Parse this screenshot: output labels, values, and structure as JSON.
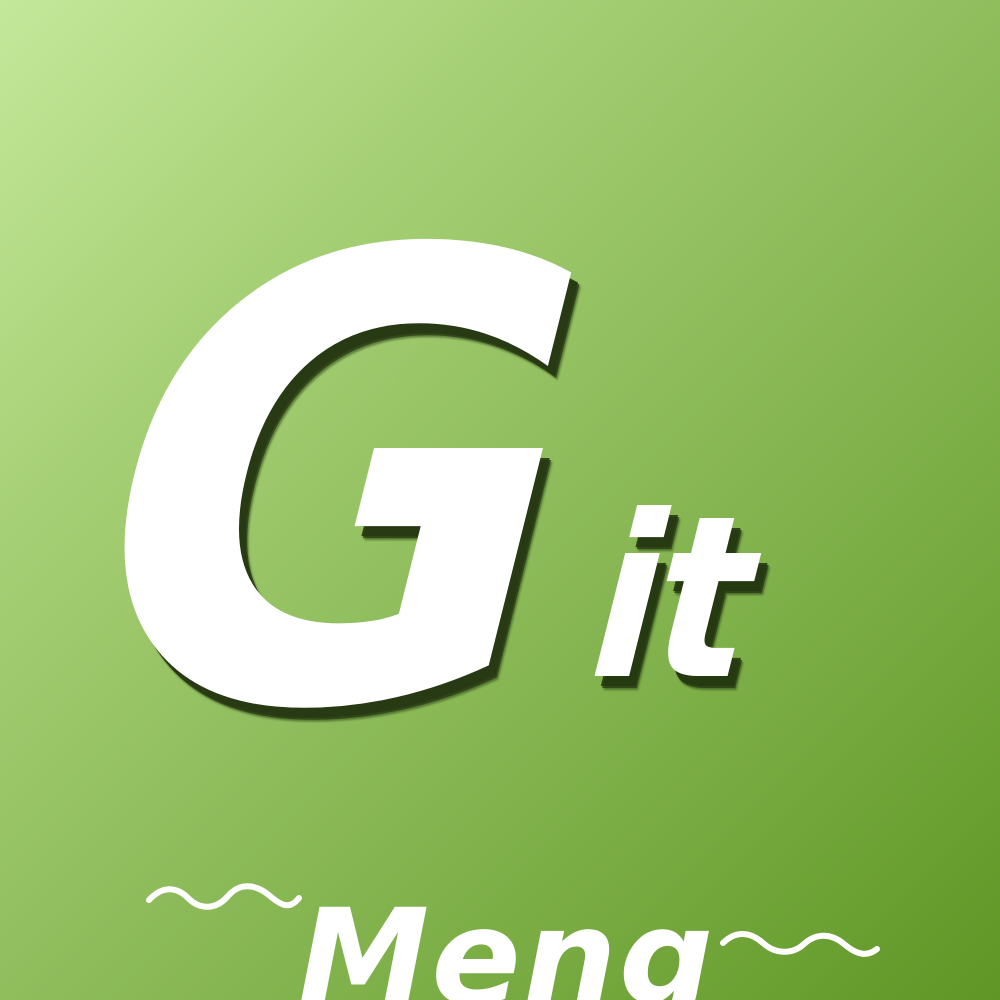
{
  "logo": {
    "main_letter": "G",
    "suffix": "it",
    "subtitle": "Meng"
  },
  "colors": {
    "background_light": "#c4e89a",
    "background_dark": "#5f9625",
    "text": "#ffffff",
    "shadow": "#263a12"
  },
  "decorations": {
    "left_wave_icon": "wave-line-icon",
    "right_wave_icon": "wave-line-icon"
  }
}
